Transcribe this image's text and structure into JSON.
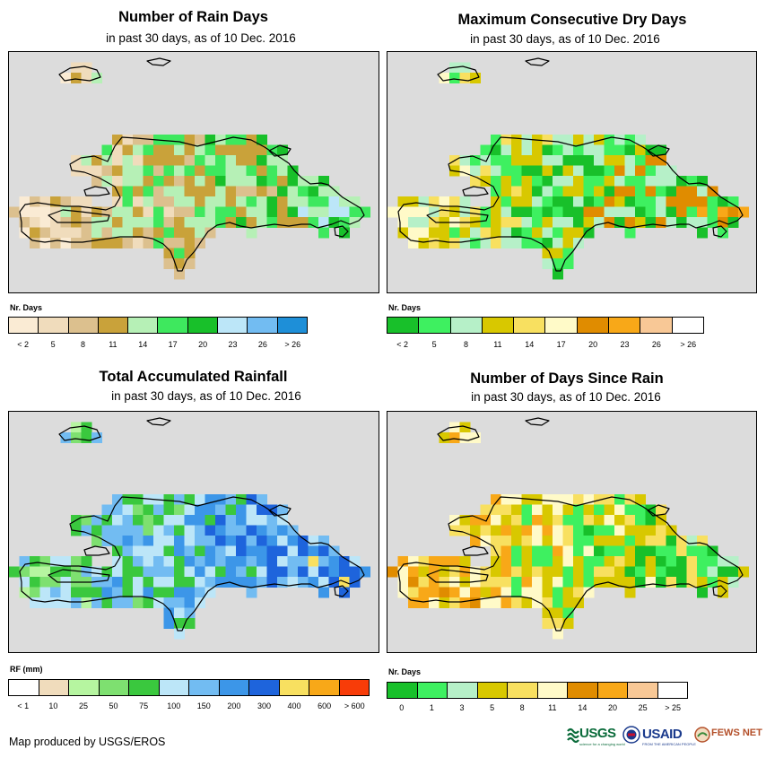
{
  "panels": [
    {
      "id": "rain-days",
      "title": "Number of Rain Days",
      "subtitle": "in past 30 days, as of 10 Dec. 2016",
      "legend": {
        "title": "Nr. Days",
        "colors": [
          "#faebd4",
          "#f0dcbc",
          "#dcc08e",
          "#c9a23a",
          "#b6f0b6",
          "#3ee85e",
          "#18c02a",
          "#bce6f8",
          "#72bcf2",
          "#1e8fd8"
        ],
        "labels": [
          "< 2",
          "5",
          "8",
          "11",
          "14",
          "17",
          "20",
          "23",
          "26",
          "> 26"
        ]
      }
    },
    {
      "id": "max-dry-days",
      "title": "Maximum Consecutive Dry Days",
      "subtitle": "in past 30 days, as of 10 Dec. 2016",
      "legend": {
        "title": "Nr. Days",
        "colors": [
          "#18c02a",
          "#3ef060",
          "#b6f0c8",
          "#d8c800",
          "#f8e060",
          "#fffac8",
          "#e08c00",
          "#f8a818",
          "#f8c896",
          "#ffffff"
        ],
        "labels": [
          "< 2",
          "5",
          "8",
          "11",
          "14",
          "17",
          "20",
          "23",
          "26",
          "> 26"
        ]
      }
    },
    {
      "id": "total-rainfall",
      "title": "Total Accumulated Rainfall",
      "subtitle": "in past 30 days, as of 10 Dec. 2016",
      "legend": {
        "title": "RF (mm)",
        "colors": [
          "#ffffff",
          "#f0dcbc",
          "#b6f5a0",
          "#7ee070",
          "#3ac83e",
          "#bce6f8",
          "#72bcf2",
          "#3c96e8",
          "#1e64dc",
          "#f8e060",
          "#f8a818",
          "#f83c08"
        ],
        "labels": [
          "< 1",
          "10",
          "25",
          "50",
          "75",
          "100",
          "150",
          "200",
          "300",
          "400",
          "600",
          "> 600"
        ]
      }
    },
    {
      "id": "days-since-rain",
      "title": "Number of Days Since Rain",
      "subtitle": "in past 30 days, as of 10 Dec. 2016",
      "legend": {
        "title": "Nr. Days",
        "colors": [
          "#18c02a",
          "#3ef060",
          "#b6f0c8",
          "#d8c800",
          "#f8e060",
          "#fffac8",
          "#e08c00",
          "#f8a818",
          "#f8c896",
          "#ffffff"
        ],
        "labels": [
          "0",
          "1",
          "3",
          "5",
          "8",
          "11",
          "14",
          "20",
          "25",
          "> 25"
        ]
      }
    }
  ],
  "credit": "Map produced by USGS/EROS",
  "logos": {
    "usgs": "USGS",
    "usgs_tagline": "science for a changing world",
    "usaid": "USAID",
    "usaid_tagline": "FROM THE AMERICAN PEOPLE",
    "fewsnet": "FEWS NET"
  }
}
